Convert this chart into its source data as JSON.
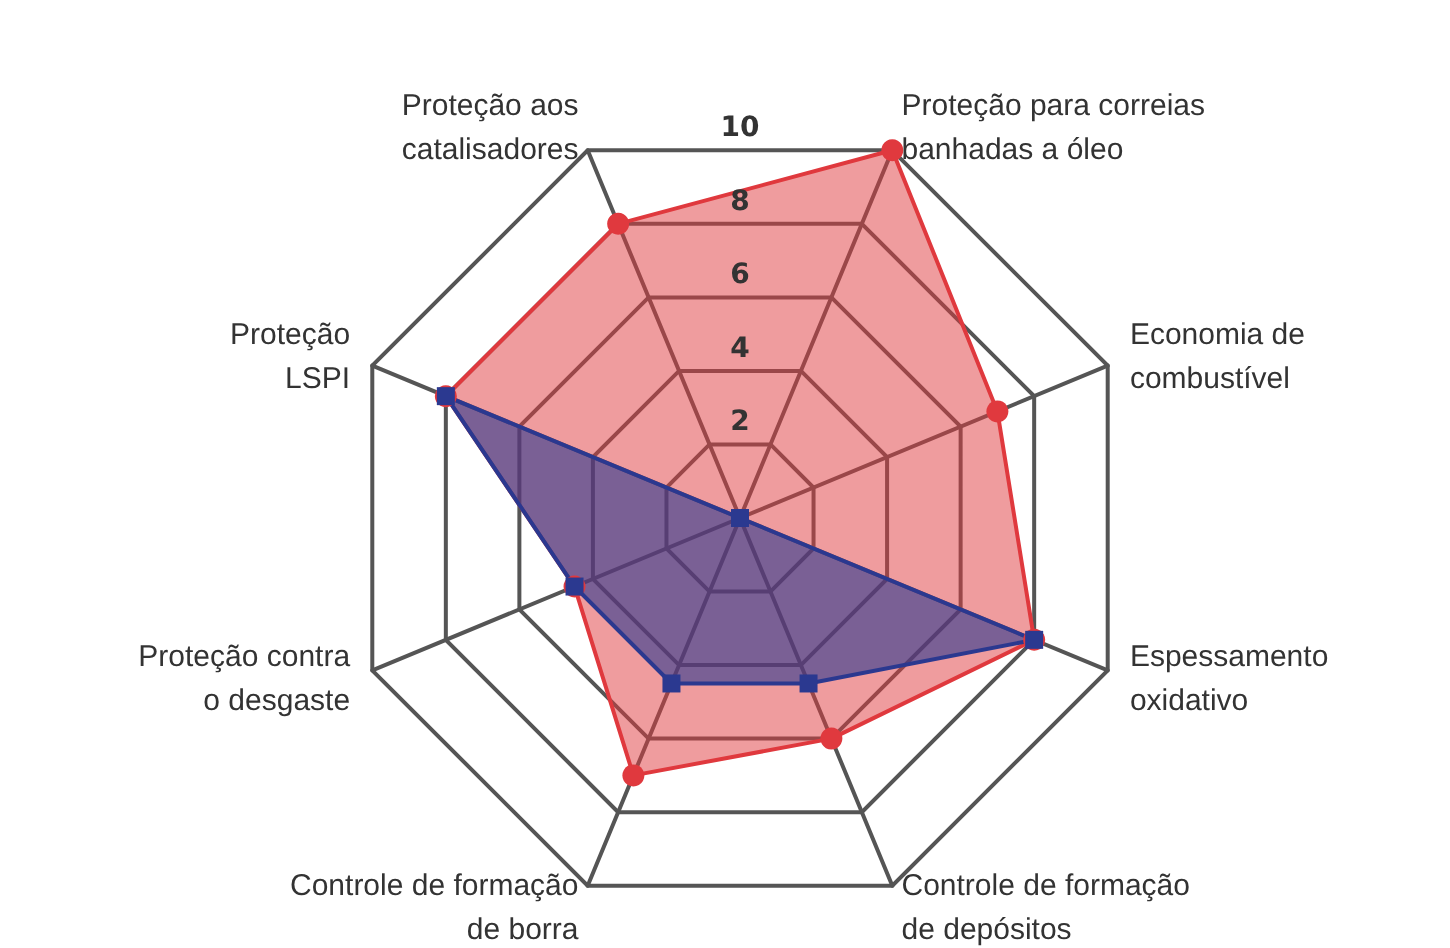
{
  "chart_data": {
    "type": "radar",
    "categories": [
      "Proteção para correias banhadas a óleo",
      "Economia de combustível",
      "Espessamento oxidativo",
      "Controle de formação de depósitos",
      "Controle de formação de borra",
      "Proteção contra o desgaste",
      "Proteção LSPI",
      "Proteção aos catalisadores"
    ],
    "series": [
      {
        "color": "#e0393e",
        "values": [
          10,
          7,
          8,
          6,
          7,
          4.5,
          8,
          8
        ]
      },
      {
        "color": "#2b3990",
        "values": [
          0,
          0,
          8,
          4.5,
          4.5,
          4.5,
          8,
          0
        ]
      }
    ],
    "ylim": [
      0,
      10
    ],
    "yticks": [
      2,
      4,
      6,
      8,
      10
    ],
    "marker": "circle"
  }
}
